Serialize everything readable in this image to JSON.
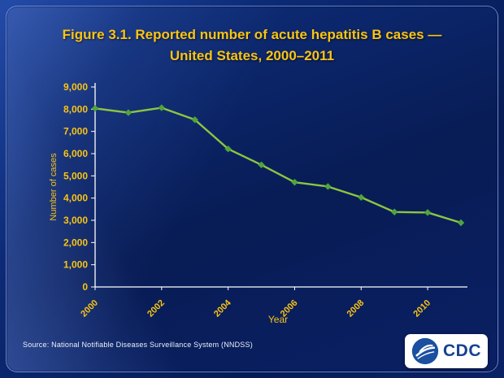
{
  "title": {
    "line1": "Figure 3.1. Reported number of acute hepatitis B cases —",
    "line2": "United States, 2000–2011"
  },
  "chart_data": {
    "type": "line",
    "x": [
      2000,
      2001,
      2002,
      2003,
      2004,
      2005,
      2006,
      2007,
      2008,
      2009,
      2010,
      2011
    ],
    "series": [
      {
        "name": "Reported acute hepatitis B cases",
        "values": [
          8036,
          7844,
          8064,
          7526,
          6212,
          5494,
          4713,
          4519,
          4033,
          3374,
          3350,
          2890
        ]
      }
    ],
    "title": "Figure 3.1. Reported number of acute hepatitis B cases — United States, 2000–2011",
    "xlabel": "Year",
    "ylabel": "Number of cases",
    "ylim": [
      0,
      9000
    ],
    "y_tick_labels": [
      "0",
      "1,000",
      "2,000",
      "3,000",
      "4,000",
      "5,000",
      "6,000",
      "7,000",
      "8,000",
      "9,000"
    ],
    "x_tick_labels": [
      "2000",
      "2002",
      "2004",
      "2006",
      "2008",
      "2010"
    ],
    "grid": false,
    "legend": "none",
    "line_color": "#8CC63F",
    "marker_color": "#4FA53B",
    "axis_color": "#FFFFFF",
    "tick_label_color": "#F9C414"
  },
  "footer": {
    "source": "Source: National  Notifiable  Diseases  Surveillance  System (NNDSS)"
  },
  "logo": {
    "text": "CDC"
  }
}
